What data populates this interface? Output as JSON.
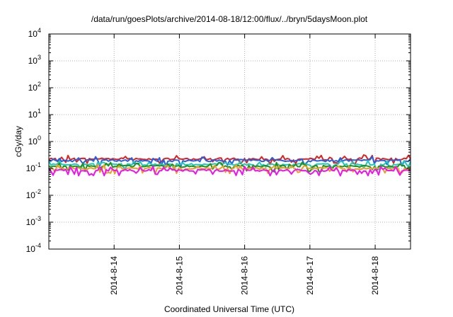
{
  "chart_data": {
    "type": "line",
    "title": "/data/run/goesPlots/archive/2014-08-18/12:00/flux/../bryn/5daysMoon.plot",
    "xlabel": "Coordinated Universal Time (UTC)",
    "ylabel": "cGy/day",
    "yscale": "log",
    "ylim": [
      0.0001,
      10000
    ],
    "xlim": [
      "2014-08-13 00:00",
      "2014-08-18 13:00"
    ],
    "grid": true,
    "x_ticks": [
      {
        "label": "2014-8-14",
        "value": "2014-08-14"
      },
      {
        "label": "2014-8-15",
        "value": "2014-08-15"
      },
      {
        "label": "2014-8-16",
        "value": "2014-08-16"
      },
      {
        "label": "2014-8-17",
        "value": "2014-08-17"
      },
      {
        "label": "2014-8-18",
        "value": "2014-08-18"
      }
    ],
    "y_ticks": [
      {
        "mantissa": "10",
        "exp": "4",
        "value": 10000
      },
      {
        "mantissa": "10",
        "exp": "3",
        "value": 1000
      },
      {
        "mantissa": "10",
        "exp": "2",
        "value": 100
      },
      {
        "mantissa": "10",
        "exp": "1",
        "value": 10
      },
      {
        "mantissa": "10",
        "exp": "0",
        "value": 1
      },
      {
        "mantissa": "10",
        "exp": "-1",
        "value": 0.1
      },
      {
        "mantissa": "10",
        "exp": "-2",
        "value": 0.01
      },
      {
        "mantissa": "10",
        "exp": "-3",
        "value": 0.001
      },
      {
        "mantissa": "10",
        "exp": "-4",
        "value": 0.0001
      }
    ],
    "series": [
      {
        "color": "#e0201b",
        "x": [
          "2014-08-13 00:00",
          "2014-08-14 00:00",
          "2014-08-15 00:00",
          "2014-08-16 00:00",
          "2014-08-17 00:00",
          "2014-08-18 00:00",
          "2014-08-18 13:00"
        ],
        "values": [
          0.22,
          0.23,
          0.22,
          0.23,
          0.22,
          0.23,
          0.22
        ]
      },
      {
        "color": "#2060e8",
        "x": [
          "2014-08-13 00:00",
          "2014-08-14 00:00",
          "2014-08-15 00:00",
          "2014-08-16 00:00",
          "2014-08-17 00:00",
          "2014-08-18 00:00",
          "2014-08-18 13:00"
        ],
        "values": [
          0.19,
          0.2,
          0.19,
          0.2,
          0.19,
          0.2,
          0.19
        ]
      },
      {
        "color": "#20c8b8",
        "x": [
          "2014-08-13 00:00",
          "2014-08-14 00:00",
          "2014-08-15 00:00",
          "2014-08-16 00:00",
          "2014-08-17 00:00",
          "2014-08-18 00:00",
          "2014-08-18 13:00"
        ],
        "values": [
          0.14,
          0.14,
          0.14,
          0.14,
          0.14,
          0.14,
          0.14
        ]
      },
      {
        "color": "#209020",
        "x": [
          "2014-08-13 00:00",
          "2014-08-14 00:00",
          "2014-08-15 00:00",
          "2014-08-16 00:00",
          "2014-08-17 00:00",
          "2014-08-18 00:00",
          "2014-08-18 13:00"
        ],
        "values": [
          0.12,
          0.12,
          0.12,
          0.12,
          0.12,
          0.12,
          0.12
        ]
      },
      {
        "color": "#e8a020",
        "x": [
          "2014-08-13 00:00",
          "2014-08-14 00:00",
          "2014-08-15 00:00",
          "2014-08-16 00:00",
          "2014-08-17 00:00",
          "2014-08-18 00:00",
          "2014-08-18 13:00"
        ],
        "values": [
          0.1,
          0.1,
          0.1,
          0.1,
          0.1,
          0.1,
          0.1
        ]
      },
      {
        "color": "#f010f0",
        "x": [
          "2014-08-13 00:00",
          "2014-08-14 00:00",
          "2014-08-15 00:00",
          "2014-08-16 00:00",
          "2014-08-17 00:00",
          "2014-08-18 00:00",
          "2014-08-18 13:00"
        ],
        "values": [
          0.085,
          0.085,
          0.085,
          0.085,
          0.085,
          0.085,
          0.085
        ]
      }
    ]
  }
}
